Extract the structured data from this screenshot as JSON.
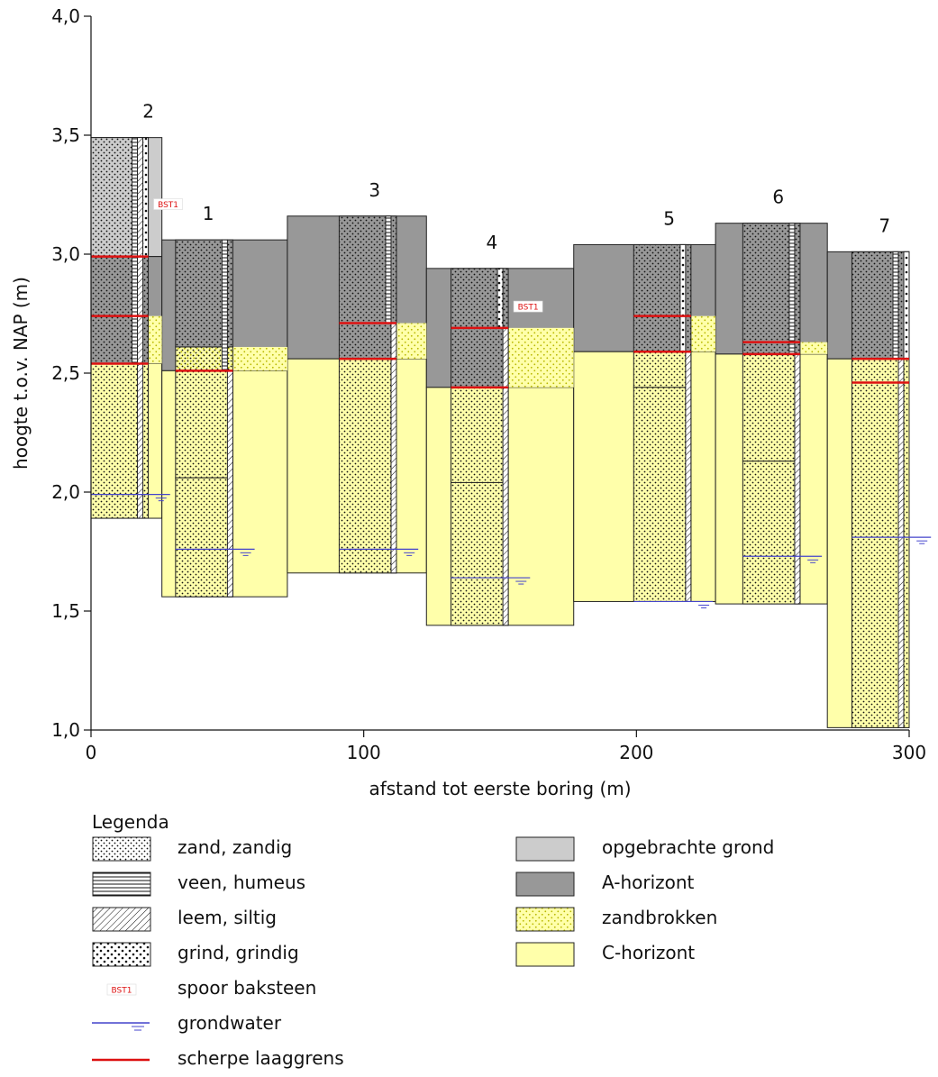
{
  "chart_data": {
    "type": "geologic-cross-section",
    "xlabel": "afstand tot eerste boring (m)",
    "ylabel": "hoogte t.o.v. NAP (m)",
    "xlim": [
      0,
      300
    ],
    "ylim": [
      1.0,
      4.0
    ],
    "xticks": [
      0,
      100,
      200,
      300
    ],
    "xtick_labels": [
      "0",
      "100",
      "200",
      "300"
    ],
    "yticks": [
      1.0,
      1.5,
      2.0,
      2.5,
      3.0,
      3.5,
      4.0
    ],
    "ytick_labels": [
      "1,0",
      "1,5",
      "2,0",
      "2,5",
      "3,0",
      "3,5",
      "4,0"
    ],
    "horizon_colors": {
      "opgebracht": "#cccccc",
      "A": "#989898",
      "zandbrokken": "#ffffaa",
      "C": "#ffffaa"
    },
    "boreholes": [
      {
        "label": "2",
        "x_center": 21,
        "x_left": 0,
        "x_right": 26,
        "top": 3.49,
        "bottom": 1.89,
        "horizons": [
          {
            "type": "opgebracht",
            "top": 3.49,
            "bottom": 2.99
          },
          {
            "type": "A",
            "top": 2.99,
            "bottom": 2.54
          },
          {
            "type": "C",
            "top": 2.54,
            "bottom": 1.89
          }
        ],
        "core": {
          "left": 0,
          "right": 21
        },
        "core_layers": [
          {
            "top": 3.49,
            "bottom": 2.99,
            "horizon": "opgebracht",
            "texture": "zand"
          },
          {
            "top": 2.99,
            "bottom": 2.54,
            "horizon": "A",
            "texture": "zand"
          },
          {
            "top": 2.54,
            "bottom": 1.89,
            "horizon": "C",
            "texture": "zand"
          }
        ],
        "strips": [
          {
            "pattern": "veen",
            "top": 3.49,
            "bottom": 2.54
          },
          {
            "pattern": "leem",
            "top": 3.49,
            "bottom": 1.89
          },
          {
            "pattern": "grind",
            "top": 3.49,
            "bottom": 2.99
          }
        ],
        "sharp_boundaries": [
          2.99,
          2.74,
          2.54
        ],
        "groundwater": 1.99,
        "bst1": 3.21
      },
      {
        "label": "1",
        "x_center": 43,
        "x_left": 26,
        "x_right": 72,
        "top": 3.06,
        "bottom": 1.56,
        "horizons": [
          {
            "type": "A",
            "top": 3.06,
            "bottom": 2.51
          },
          {
            "type": "C",
            "top": 2.51,
            "bottom": 1.56
          }
        ],
        "core": {
          "left": 31,
          "right": 52
        },
        "core_layers": [
          {
            "top": 3.06,
            "bottom": 2.61,
            "horizon": "A",
            "texture": "zand"
          },
          {
            "top": 2.61,
            "bottom": 2.51,
            "horizon": "zandbrokken",
            "texture": "zand"
          },
          {
            "top": 2.51,
            "bottom": 2.06,
            "horizon": "C",
            "texture": "zand"
          },
          {
            "top": 2.06,
            "bottom": 1.56,
            "horizon": "C",
            "texture": "zand"
          }
        ],
        "strips": [
          {
            "pattern": "veen",
            "top": 3.06,
            "bottom": 2.51
          },
          {
            "pattern": "leem",
            "top": 2.51,
            "bottom": 1.56
          }
        ],
        "sharp_boundaries": [
          2.51
        ],
        "groundwater": 1.76,
        "bst1": null
      },
      {
        "label": "3",
        "x_center": 104,
        "x_left": 72,
        "x_right": 123,
        "top": 3.16,
        "bottom": 1.66,
        "horizons": [
          {
            "type": "A",
            "top": 3.16,
            "bottom": 2.56
          },
          {
            "type": "C",
            "top": 2.56,
            "bottom": 1.66
          }
        ],
        "core": {
          "left": 91,
          "right": 112
        },
        "core_layers": [
          {
            "top": 3.16,
            "bottom": 2.56,
            "horizon": "A",
            "texture": "zand"
          },
          {
            "top": 2.56,
            "bottom": 1.66,
            "horizon": "C",
            "texture": "zand"
          }
        ],
        "strips": [
          {
            "pattern": "veen",
            "top": 3.16,
            "bottom": 2.71
          },
          {
            "pattern": "leem",
            "top": 2.71,
            "bottom": 1.66
          }
        ],
        "sharp_boundaries": [
          2.71,
          2.56
        ],
        "groundwater": 1.76,
        "bst1": null
      },
      {
        "label": "4",
        "x_center": 147,
        "x_left": 123,
        "x_right": 177,
        "top": 2.94,
        "bottom": 1.44,
        "horizons": [
          {
            "type": "A",
            "top": 2.94,
            "bottom": 2.44
          },
          {
            "type": "C",
            "top": 2.44,
            "bottom": 1.44
          }
        ],
        "core": {
          "left": 132,
          "right": 153
        },
        "core_layers": [
          {
            "top": 2.94,
            "bottom": 2.44,
            "horizon": "A",
            "texture": "zand"
          },
          {
            "top": 2.44,
            "bottom": 2.04,
            "horizon": "C",
            "texture": "zand"
          },
          {
            "top": 2.04,
            "bottom": 1.44,
            "horizon": "C",
            "texture": "zand"
          }
        ],
        "strips": [
          {
            "pattern": "grind",
            "top": 2.94,
            "bottom": 2.69
          },
          {
            "pattern": "leem",
            "top": 2.69,
            "bottom": 1.44
          }
        ],
        "sharp_boundaries": [
          2.69,
          2.44
        ],
        "groundwater": 1.64,
        "bst1": 2.78
      },
      {
        "label": "5",
        "x_center": 212,
        "x_left": 177,
        "x_right": 229,
        "top": 3.04,
        "bottom": 1.54,
        "horizons": [
          {
            "type": "A",
            "top": 3.04,
            "bottom": 2.59
          },
          {
            "type": "C",
            "top": 2.59,
            "bottom": 1.54
          }
        ],
        "core": {
          "left": 199,
          "right": 220
        },
        "core_layers": [
          {
            "top": 3.04,
            "bottom": 2.59,
            "horizon": "A",
            "texture": "zand"
          },
          {
            "top": 2.59,
            "bottom": 2.44,
            "horizon": "C",
            "texture": "zand"
          },
          {
            "top": 2.44,
            "bottom": 1.54,
            "horizon": "C",
            "texture": "zand"
          }
        ],
        "strips": [
          {
            "pattern": "grind",
            "top": 3.04,
            "bottom": 2.59
          },
          {
            "pattern": "leem",
            "top": 2.59,
            "bottom": 1.54
          }
        ],
        "sharp_boundaries": [
          2.74,
          2.59
        ],
        "groundwater": 1.54,
        "bst1": null
      },
      {
        "label": "6",
        "x_center": 252,
        "x_left": 229,
        "x_right": 270,
        "top": 3.13,
        "bottom": 1.53,
        "horizons": [
          {
            "type": "A",
            "top": 3.13,
            "bottom": 2.58
          },
          {
            "type": "C",
            "top": 2.58,
            "bottom": 1.53
          }
        ],
        "core": {
          "left": 239,
          "right": 260
        },
        "core_layers": [
          {
            "top": 3.13,
            "bottom": 2.58,
            "horizon": "A",
            "texture": "zand"
          },
          {
            "top": 2.58,
            "bottom": 2.13,
            "horizon": "C",
            "texture": "zand"
          },
          {
            "top": 2.13,
            "bottom": 1.53,
            "horizon": "C",
            "texture": "zand"
          }
        ],
        "strips": [
          {
            "pattern": "veen",
            "top": 3.13,
            "bottom": 2.58
          },
          {
            "pattern": "leem",
            "top": 2.58,
            "bottom": 1.53
          }
        ],
        "sharp_boundaries": [
          2.63,
          2.58
        ],
        "groundwater": 1.73,
        "bst1": null
      },
      {
        "label": "7",
        "x_center": 291,
        "x_left": 270,
        "x_right": 300,
        "top": 3.01,
        "bottom": 1.01,
        "horizons": [
          {
            "type": "A",
            "top": 3.01,
            "bottom": 2.56
          },
          {
            "type": "C",
            "top": 2.56,
            "bottom": 1.01
          }
        ],
        "core": {
          "left": 279,
          "right": 300
        },
        "core_layers": [
          {
            "top": 3.01,
            "bottom": 2.56,
            "horizon": "A",
            "texture": "zand"
          },
          {
            "top": 2.56,
            "bottom": 1.01,
            "horizon": "C",
            "texture": "zand"
          }
        ],
        "strips": [
          {
            "pattern": "veen",
            "top": 3.01,
            "bottom": 2.56
          },
          {
            "pattern": "leem",
            "top": 2.56,
            "bottom": 1.01
          },
          {
            "pattern": "grind",
            "top": 3.01,
            "bottom": 2.56
          }
        ],
        "sharp_boundaries": [
          2.56,
          2.46
        ],
        "groundwater": 1.81,
        "bst1": null
      }
    ],
    "zandbrokken_zones": [
      {
        "x_from": 21,
        "x_to": 26,
        "top": 2.74,
        "bottom": 2.54
      },
      {
        "x_from": 52,
        "x_to": 72,
        "top": 2.61,
        "bottom": 2.51
      },
      {
        "x_from": 112,
        "x_to": 123,
        "top": 2.71,
        "bottom": 2.56
      },
      {
        "x_from": 153,
        "x_to": 177,
        "top": 2.69,
        "bottom": 2.44
      },
      {
        "x_from": 220,
        "x_to": 229,
        "top": 2.74,
        "bottom": 2.59
      },
      {
        "x_from": 260,
        "x_to": 270,
        "top": 2.63,
        "bottom": 2.58
      }
    ],
    "bst1_label": "BST1"
  },
  "legend": {
    "title": "Legenda",
    "items": [
      {
        "key": "zand",
        "label": "zand, zandig",
        "column": 0
      },
      {
        "key": "veen",
        "label": "veen, humeus",
        "column": 0
      },
      {
        "key": "leem",
        "label": "leem, siltig",
        "column": 0
      },
      {
        "key": "grind",
        "label": "grind, grindig",
        "column": 0
      },
      {
        "key": "bst1",
        "label": "spoor baksteen",
        "column": 0,
        "swatch_text": "BST1"
      },
      {
        "key": "grondwater",
        "label": "grondwater",
        "column": 0
      },
      {
        "key": "laaggrens",
        "label": "scherpe laaggrens",
        "column": 0
      },
      {
        "key": "opgebracht",
        "label": "opgebrachte grond",
        "column": 1
      },
      {
        "key": "A",
        "label": "A-horizont",
        "column": 1
      },
      {
        "key": "zandbrokken",
        "label": "zandbrokken",
        "column": 1
      },
      {
        "key": "C",
        "label": "C-horizont",
        "column": 1
      }
    ]
  },
  "colors": {
    "sharp_boundary": "#dd1111",
    "groundwater": "#4444cc",
    "outline": "#222222"
  }
}
